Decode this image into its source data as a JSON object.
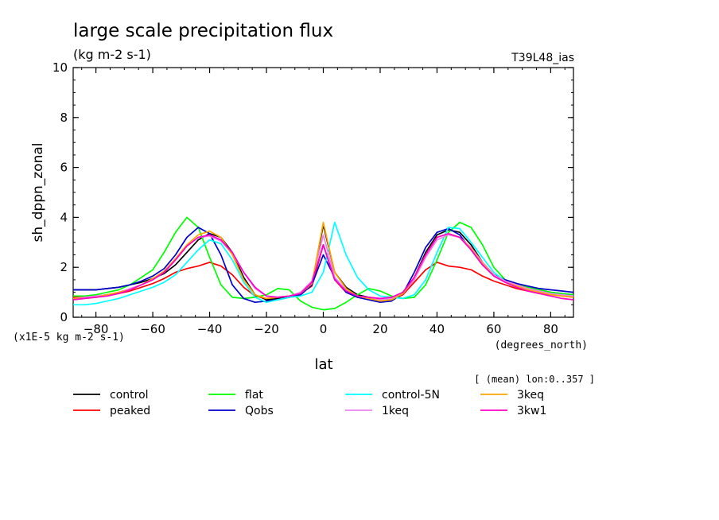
{
  "chart_data": {
    "type": "line",
    "title": "large scale precipitation flux",
    "subtitle": "(kg m-2 s-1)",
    "run_label": "T39L48_ias",
    "xlabel": "lat",
    "x_units": "(degrees_north)",
    "ylabel": "sh_dppn_zonal",
    "y_scale_note": "(x1E-5 kg m-2 s-1)",
    "mean_note": "[ (mean) lon:0..357 ]",
    "xlim": [
      -88,
      88
    ],
    "ylim": [
      0,
      10
    ],
    "x_ticks": [
      -80,
      -60,
      -40,
      -20,
      0,
      20,
      40,
      60,
      80
    ],
    "y_ticks": [
      0,
      2,
      4,
      6,
      8,
      10
    ],
    "grid": false,
    "legend_position": "bottom",
    "x": [
      -88,
      -84,
      -80,
      -76,
      -72,
      -68,
      -64,
      -60,
      -56,
      -52,
      -48,
      -44,
      -40,
      -36,
      -32,
      -28,
      -24,
      -20,
      -16,
      -12,
      -8,
      -4,
      0,
      4,
      8,
      12,
      16,
      20,
      24,
      28,
      32,
      36,
      40,
      44,
      48,
      52,
      56,
      60,
      64,
      68,
      72,
      76,
      80,
      84,
      88
    ],
    "series": [
      {
        "name": "control",
        "color": "#000000",
        "values": [
          1.1,
          1.1,
          1.1,
          1.15,
          1.2,
          1.3,
          1.4,
          1.55,
          1.75,
          2.1,
          2.6,
          3.1,
          3.35,
          3.2,
          2.6,
          1.6,
          0.9,
          0.7,
          0.75,
          0.8,
          0.9,
          1.3,
          3.7,
          1.8,
          1.2,
          0.9,
          0.8,
          0.7,
          0.75,
          1.0,
          1.6,
          2.6,
          3.3,
          3.5,
          3.4,
          2.9,
          2.2,
          1.7,
          1.5,
          1.35,
          1.2,
          1.1,
          1.0,
          0.95,
          0.9
        ]
      },
      {
        "name": "peaked",
        "color": "#ff0000",
        "values": [
          0.8,
          0.8,
          0.85,
          0.9,
          0.95,
          1.05,
          1.2,
          1.35,
          1.55,
          1.8,
          1.95,
          2.05,
          2.2,
          2.05,
          1.7,
          1.2,
          0.85,
          0.75,
          0.8,
          0.85,
          0.95,
          1.25,
          2.9,
          1.5,
          1.0,
          0.8,
          0.75,
          0.65,
          0.7,
          0.9,
          1.4,
          1.9,
          2.2,
          2.05,
          2.0,
          1.9,
          1.65,
          1.45,
          1.3,
          1.15,
          1.05,
          0.95,
          0.9,
          0.85,
          0.8
        ]
      },
      {
        "name": "flat",
        "color": "#00ff00",
        "values": [
          0.85,
          0.85,
          0.9,
          1.0,
          1.1,
          1.3,
          1.6,
          1.9,
          2.6,
          3.4,
          4.0,
          3.6,
          2.4,
          1.3,
          0.8,
          0.75,
          0.8,
          0.9,
          1.15,
          1.1,
          0.65,
          0.4,
          0.3,
          0.35,
          0.6,
          0.9,
          1.15,
          1.05,
          0.85,
          0.75,
          0.8,
          1.3,
          2.3,
          3.4,
          3.8,
          3.6,
          2.9,
          2.0,
          1.5,
          1.3,
          1.2,
          1.1,
          1.0,
          0.95,
          0.9
        ]
      },
      {
        "name": "Qobs",
        "color": "#0000cc",
        "values": [
          1.1,
          1.1,
          1.1,
          1.15,
          1.2,
          1.3,
          1.45,
          1.65,
          1.95,
          2.5,
          3.2,
          3.6,
          3.35,
          2.5,
          1.3,
          0.75,
          0.6,
          0.65,
          0.7,
          0.8,
          0.9,
          1.3,
          2.5,
          1.6,
          1.0,
          0.8,
          0.7,
          0.6,
          0.65,
          0.95,
          1.8,
          2.8,
          3.4,
          3.55,
          3.3,
          2.7,
          2.1,
          1.7,
          1.5,
          1.35,
          1.25,
          1.15,
          1.1,
          1.05,
          1.0
        ]
      },
      {
        "name": "control-5N",
        "color": "#00ffff",
        "values": [
          0.5,
          0.5,
          0.55,
          0.65,
          0.75,
          0.9,
          1.05,
          1.2,
          1.4,
          1.7,
          2.2,
          2.7,
          3.1,
          2.95,
          2.3,
          1.4,
          0.8,
          0.6,
          0.7,
          0.8,
          0.85,
          1.0,
          1.8,
          3.8,
          2.5,
          1.6,
          1.1,
          0.85,
          0.8,
          0.75,
          0.9,
          1.5,
          2.6,
          3.6,
          3.55,
          3.0,
          2.4,
          1.8,
          1.45,
          1.2,
          1.1,
          1.0,
          0.95,
          0.9,
          0.85
        ]
      },
      {
        "name": "1keq",
        "color": "#ee82ee",
        "values": [
          0.75,
          0.8,
          0.85,
          0.9,
          1.0,
          1.15,
          1.3,
          1.5,
          1.8,
          2.3,
          2.85,
          3.2,
          3.25,
          3.05,
          2.55,
          1.8,
          1.15,
          0.85,
          0.8,
          0.85,
          1.0,
          1.45,
          3.3,
          1.6,
          1.1,
          0.85,
          0.75,
          0.7,
          0.75,
          0.95,
          1.5,
          2.4,
          3.1,
          3.3,
          3.2,
          2.8,
          2.2,
          1.7,
          1.45,
          1.3,
          1.15,
          1.05,
          0.95,
          0.9,
          0.85
        ]
      },
      {
        "name": "3keq",
        "color": "#ffa500",
        "values": [
          0.75,
          0.75,
          0.8,
          0.9,
          1.0,
          1.1,
          1.3,
          1.55,
          1.85,
          2.35,
          2.9,
          3.3,
          3.45,
          3.2,
          2.5,
          1.5,
          0.9,
          0.75,
          0.8,
          0.85,
          0.95,
          1.35,
          3.8,
          1.8,
          1.15,
          0.85,
          0.75,
          0.65,
          0.7,
          0.95,
          1.6,
          2.5,
          3.2,
          3.35,
          3.2,
          2.75,
          2.15,
          1.65,
          1.4,
          1.25,
          1.1,
          1.0,
          0.9,
          0.85,
          0.8
        ]
      },
      {
        "name": "3kw1",
        "color": "#ff00cc",
        "values": [
          0.7,
          0.75,
          0.8,
          0.85,
          0.95,
          1.1,
          1.3,
          1.5,
          1.8,
          2.3,
          2.85,
          3.2,
          3.3,
          3.1,
          2.6,
          1.8,
          1.2,
          0.85,
          0.8,
          0.85,
          0.95,
          1.4,
          2.9,
          1.5,
          1.05,
          0.85,
          0.8,
          0.75,
          0.8,
          1.0,
          1.6,
          2.5,
          3.2,
          3.35,
          3.2,
          2.7,
          2.1,
          1.65,
          1.4,
          1.2,
          1.05,
          0.95,
          0.85,
          0.75,
          0.7
        ]
      }
    ]
  }
}
